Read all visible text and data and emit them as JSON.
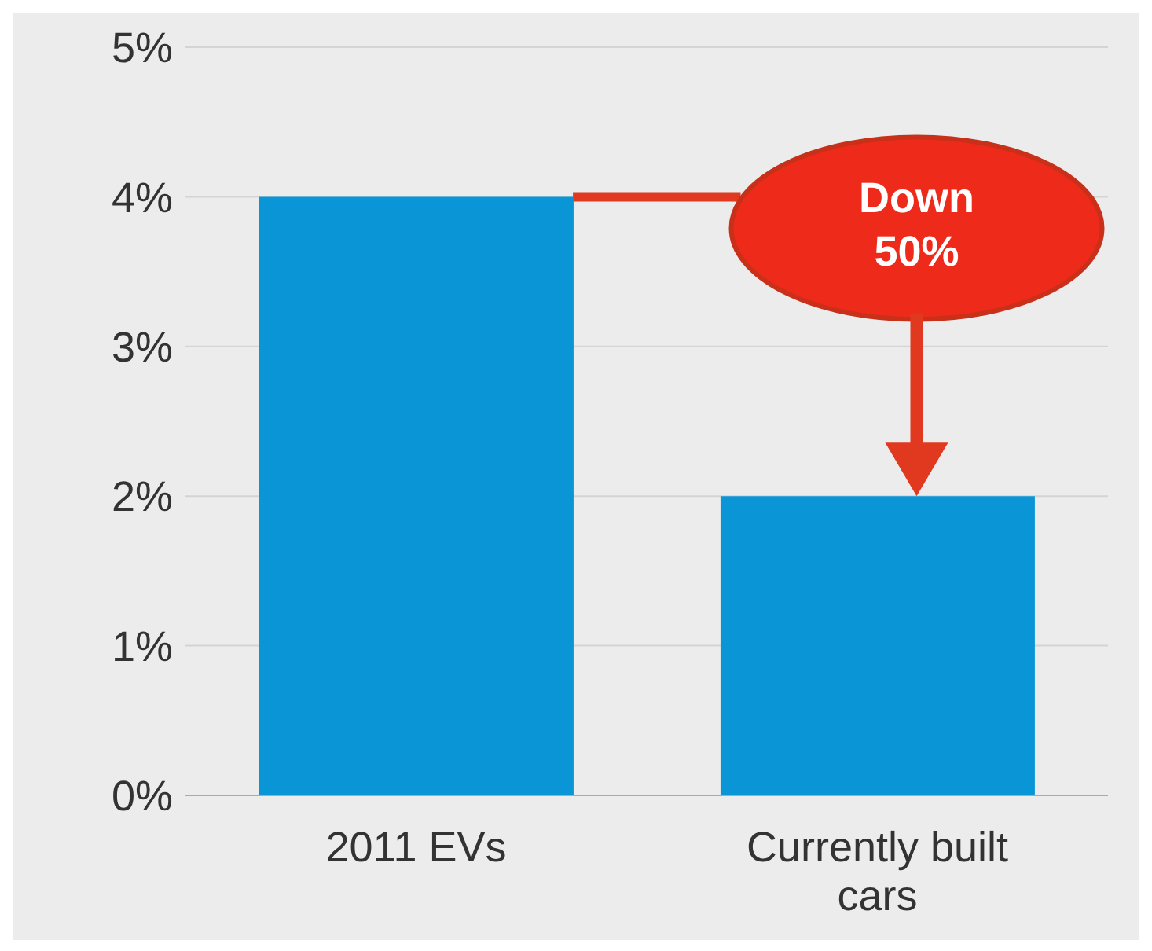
{
  "chart_data": {
    "type": "bar",
    "categories": [
      "2011 EVs",
      "Currently built cars"
    ],
    "values": [
      4,
      2
    ],
    "color": "#0a96d6",
    "ylim": [
      0,
      5
    ],
    "yticks": [
      {
        "value": 0,
        "label": "0%"
      },
      {
        "value": 1,
        "label": "1%"
      },
      {
        "value": 2,
        "label": "2%"
      },
      {
        "value": 3,
        "label": "3%"
      },
      {
        "value": 4,
        "label": "4%"
      },
      {
        "value": 5,
        "label": "5%"
      }
    ],
    "grid": "y",
    "annotations": [
      "Down 50%"
    ]
  }
}
